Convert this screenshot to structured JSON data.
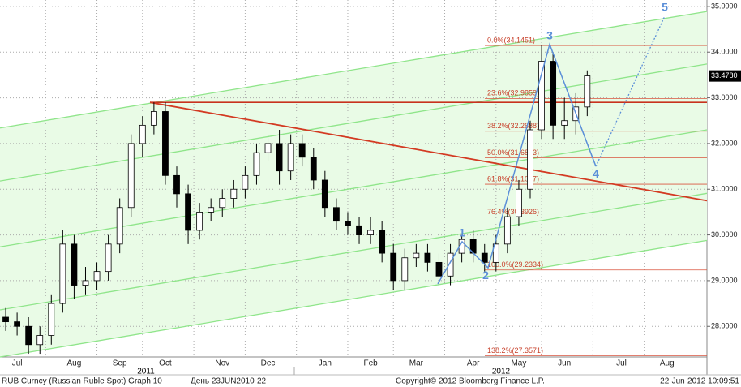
{
  "chart_data": {
    "type": "candlestick",
    "categories": [
      null,
      "Jul",
      null,
      null,
      null,
      null,
      "Aug",
      null,
      null,
      null,
      "Sep",
      null,
      null,
      null,
      "Oct",
      null,
      null,
      null,
      null,
      "Nov",
      null,
      null,
      null,
      "Dec",
      null,
      null,
      null,
      null,
      "Jan",
      null,
      null,
      null,
      "Feb",
      null,
      null,
      null,
      "Mar",
      null,
      null,
      null,
      null,
      "Apr",
      null,
      null,
      null,
      "May",
      null,
      null,
      null,
      "Jun",
      null,
      null,
      null,
      null,
      "Jul",
      null,
      null,
      null,
      "Aug",
      null,
      null,
      null
    ],
    "open": [
      28.2,
      28.1,
      28.0,
      27.6,
      27.8,
      28.5,
      29.8,
      28.9,
      29.0,
      29.2,
      29.8,
      30.6,
      32.0,
      32.4,
      32.7,
      31.3,
      30.9,
      30.1,
      30.5,
      30.6,
      30.8,
      31.0,
      31.3,
      31.8,
      32.0,
      31.4,
      32.0,
      31.7,
      31.2,
      30.6,
      30.3,
      30.2,
      30.0,
      30.1,
      29.6,
      29.0,
      29.5,
      29.6,
      29.4,
      29.1,
      29.6,
      29.9,
      29.6,
      29.4,
      29.8,
      30.4,
      31.0,
      32.3,
      33.8,
      32.4,
      32.5,
      32.8,
      null,
      null,
      null,
      null,
      null,
      null,
      null,
      null,
      null,
      null
    ],
    "high": [
      28.4,
      28.3,
      28.2,
      28.0,
      28.7,
      30.1,
      30.0,
      29.3,
      29.4,
      30.0,
      30.8,
      32.2,
      32.6,
      32.9,
      32.9,
      31.5,
      31.1,
      30.7,
      30.8,
      31.0,
      31.2,
      31.5,
      32.0,
      32.2,
      32.3,
      32.2,
      32.2,
      31.9,
      31.4,
      30.8,
      30.5,
      30.4,
      30.4,
      30.3,
      29.8,
      29.7,
      29.8,
      29.8,
      29.6,
      29.8,
      30.0,
      30.1,
      29.8,
      30.0,
      30.6,
      31.2,
      32.5,
      34.15,
      34.0,
      33.0,
      33.1,
      33.6,
      null,
      null,
      null,
      null,
      null,
      null,
      null,
      null,
      null,
      null
    ],
    "low": [
      27.9,
      27.8,
      27.4,
      27.4,
      27.6,
      28.3,
      28.6,
      28.7,
      28.8,
      29.0,
      29.6,
      30.4,
      31.7,
      32.2,
      31.1,
      30.6,
      29.8,
      29.9,
      30.3,
      30.4,
      30.6,
      30.8,
      31.1,
      31.6,
      31.1,
      31.2,
      31.5,
      31.0,
      30.4,
      30.1,
      30.0,
      29.8,
      29.8,
      29.4,
      28.8,
      28.8,
      29.3,
      29.2,
      28.9,
      28.9,
      29.4,
      29.4,
      29.2,
      29.2,
      29.6,
      30.2,
      30.8,
      32.1,
      32.1,
      32.1,
      32.2,
      32.6,
      null,
      null,
      null,
      null,
      null,
      null,
      null,
      null,
      null,
      null
    ],
    "close": [
      28.1,
      28.0,
      27.6,
      27.8,
      28.5,
      29.8,
      28.9,
      29.0,
      29.2,
      29.8,
      30.6,
      32.0,
      32.4,
      32.7,
      31.3,
      30.9,
      30.1,
      30.5,
      30.6,
      30.8,
      31.0,
      31.3,
      31.8,
      32.0,
      31.4,
      32.0,
      31.7,
      31.2,
      30.6,
      30.3,
      30.2,
      30.0,
      30.1,
      29.6,
      29.0,
      29.5,
      29.6,
      29.4,
      29.1,
      29.6,
      29.9,
      29.6,
      29.4,
      29.8,
      30.4,
      31.0,
      32.3,
      33.8,
      32.4,
      32.5,
      32.8,
      33.48,
      null,
      null,
      null,
      null,
      null,
      null,
      null,
      null,
      null,
      null
    ],
    "year_labels": [
      "2011",
      "2012"
    ],
    "ylim": [
      27.33,
      35.14
    ],
    "yticks": [
      {
        "value": 28,
        "label": "28.0000"
      },
      {
        "value": 29,
        "label": "29.0000"
      },
      {
        "value": 30,
        "label": "30.0000"
      },
      {
        "value": 31,
        "label": "31.0000"
      },
      {
        "value": 32,
        "label": "32.0000"
      },
      {
        "value": 33,
        "label": "33.0000"
      },
      {
        "value": 34,
        "label": "34.0000"
      },
      {
        "value": 35,
        "label": "35.0000"
      }
    ],
    "grid": true,
    "last_price": {
      "value": 33.478,
      "label": "33.4780"
    },
    "fib_levels": [
      {
        "value": 34.1451,
        "label": "0.0%(34.1451)"
      },
      {
        "value": 32.9859,
        "label": "23.6%(32.9859)"
      },
      {
        "value": 32.2688,
        "label": "38.2%(32.2688)"
      },
      {
        "value": 31.6893,
        "label": "50.0%(31.6893)"
      },
      {
        "value": 31.1097,
        "label": "61.8%(31.1097)"
      },
      {
        "value": 30.3926,
        "label": "76.4%(30.3926)"
      },
      {
        "value": 29.2334,
        "label": "100.0%(29.2334)"
      },
      {
        "value": 27.3571,
        "label": "138.2%(27.3571)"
      }
    ],
    "resistance_level": 32.9,
    "trend_line": [
      32.9,
      30.75
    ],
    "channel_lines": [
      [
        32.34,
        34.89
      ],
      [
        31.18,
        33.74
      ],
      [
        29.74,
        32.3
      ],
      [
        28.36,
        30.91
      ],
      [
        27.33,
        29.88
      ]
    ],
    "wave": {
      "values": [
        28.93,
        29.85,
        29.28,
        34.17,
        31.5,
        34.79
      ],
      "labels": [
        null,
        "1",
        "2",
        "3",
        "4",
        "5"
      ]
    },
    "footer": {
      "security": "RUB Curncy (Russian Ruble Spot) Graph 10",
      "range": "День 23JUN2010-22",
      "copyright": "Copyright© 2012 Bloomberg Finance L.P.",
      "timestamp": "22-Jun-2012 10:09:51"
    }
  }
}
